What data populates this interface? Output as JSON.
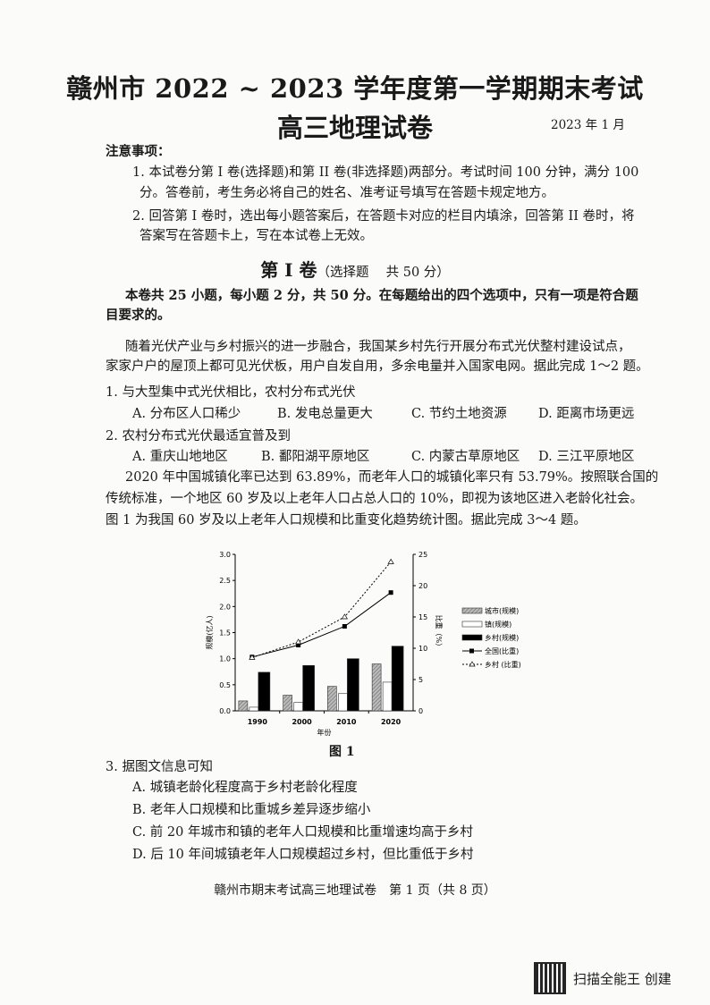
{
  "header": {
    "title_line1": "赣州市 2022 ~ 2023 学年度第一学期期末考试",
    "title_line2": "高三地理试卷",
    "date": "2023 年 1 月"
  },
  "notice": {
    "heading": "注意事项：",
    "items": [
      {
        "line1": "1. 本试卷分第 I 卷(选择题)和第 II 卷(非选择题)两部分。考试时间 100 分钟，满分 100",
        "line2": "分。答卷前，考生务必将自己的姓名、准考证号填写在答题卡规定地方。"
      },
      {
        "line1": "2. 回答第 I 卷时，选出每小题答案后，在答题卡对应的栏目内填涂，回答第 II 卷时，将",
        "line2": "答案写在答题卡上，写在本试卷上无效。"
      }
    ]
  },
  "section": {
    "title": "第 I 卷",
    "subtitle": "（选择题　 共 50 分）",
    "intro_line1": "本卷共 25 小题，每小题 2 分，共 50 分。在每题给出的四个选项中，只有一项是符合题",
    "intro_line2": "目要求的。"
  },
  "passage1": {
    "line1": "随着光伏产业与乡村振兴的进一步融合，我国某乡村先行开展分布式光伏整村建设试点，",
    "line2": "家家户户的屋顶上都可见光伏板，用户自发自用，多余电量并入国家电网。据此完成 1～2 题。"
  },
  "q1": {
    "stem": "1. 与大型集中式光伏相比，农村分布式光伏",
    "options": [
      "A. 分布区人口稀少",
      "B. 发电总量更大",
      "C. 节约土地资源",
      "D. 距离市场更远"
    ]
  },
  "q2": {
    "stem": "2. 农村分布式光伏最适宜普及到",
    "options": [
      "A. 重庆山地地区",
      "B. 鄱阳湖平原地区",
      "C. 内蒙古草原地区",
      "D. 三江平原地区"
    ]
  },
  "passage2": {
    "line1": "2020 年中国城镇化率已达到 63.89%，而老年人口的城镇化率只有 53.79%。按照联合国的",
    "line2": "传统标准，一个地区 60 岁及以上老年人口占总人口的 10%，即视为该地区进入老龄化社会。",
    "line3": "图 1 为我国 60 岁及以上老年人口规模和比重变化趋势统计图。据此完成 3～4 题。"
  },
  "chart_data": {
    "type": "bar+line",
    "categories": [
      "1990",
      "2000",
      "2010",
      "2020"
    ],
    "xlabel": "年份",
    "ylabel_left": "规模(亿人)",
    "ylabel_right": "比重（%）",
    "ylim_left": [
      0,
      3.0
    ],
    "yticks_left": [
      "0.0",
      "0.5",
      "1.0",
      "1.5",
      "2.0",
      "2.5",
      "3.0"
    ],
    "ylim_right": [
      0,
      25
    ],
    "yticks_right": [
      "0",
      "5",
      "10",
      "15",
      "20",
      "25"
    ],
    "legend_position": "right",
    "bar_series": [
      {
        "name": "城市(规模)",
        "values": [
          0.19,
          0.3,
          0.47,
          0.9
        ],
        "fill": "hatched-gray"
      },
      {
        "name": "镇(规模)",
        "values": [
          0.07,
          0.16,
          0.33,
          0.55
        ],
        "fill": "white"
      },
      {
        "name": "乡村(规模)",
        "values": [
          0.74,
          0.87,
          1.0,
          1.24
        ],
        "fill": "black"
      }
    ],
    "line_series": [
      {
        "name": "全国(比重)",
        "values": [
          8.6,
          10.5,
          13.5,
          18.9
        ],
        "style": "solid-square"
      },
      {
        "name": "乡村 (比重)",
        "values": [
          8.5,
          11.0,
          15.0,
          23.8
        ],
        "style": "dashed-triangle"
      }
    ],
    "caption": "图 1"
  },
  "q3": {
    "stem": "3. 据图文信息可知",
    "options": [
      "A. 城镇老龄化程度高于乡村老龄化程度",
      "B. 老年人口规模和比重城乡差异逐步缩小",
      "C. 前 20 年城市和镇的老年人口规模和比重增速均高于乡村",
      "D. 后 10 年间城镇老年人口规模超过乡村，但比重低于乡村"
    ]
  },
  "footer": "赣州市期末考试高三地理试卷　第 1 页（共 8 页）",
  "watermark": "扫描全能王 创建"
}
